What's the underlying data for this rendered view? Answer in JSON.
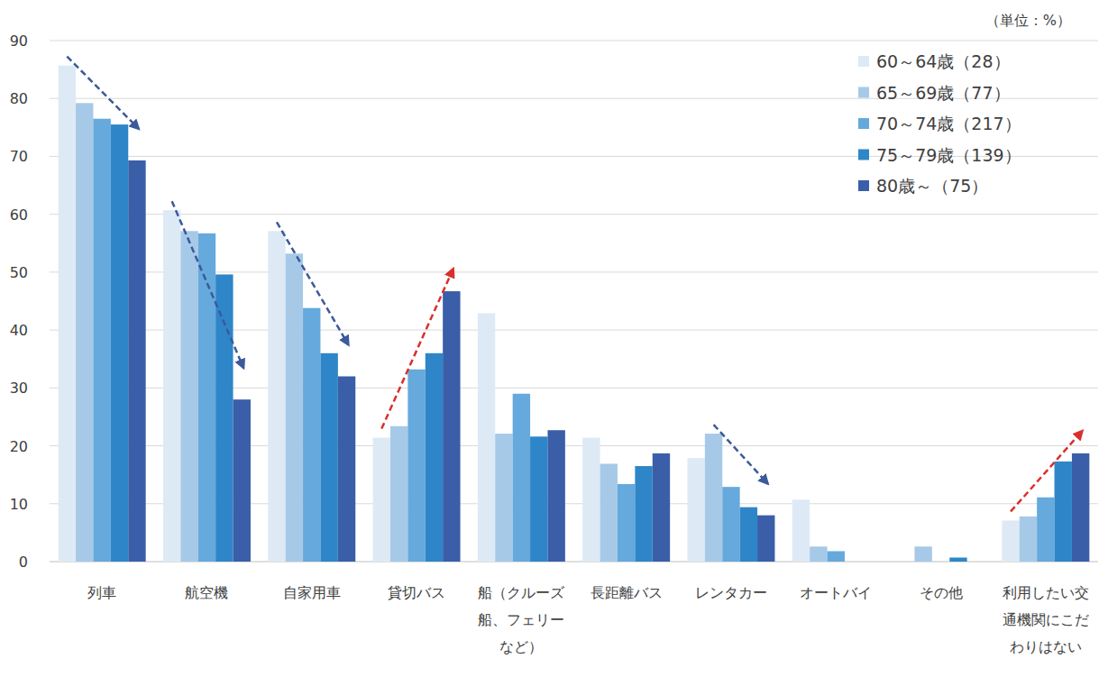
{
  "chart_data": {
    "type": "bar",
    "annotations": [
      "（単位：%）"
    ],
    "categories": [
      "列車",
      "航空機",
      "自家用車",
      "貸切バス",
      "船（クルーズ船、フェリーなど）",
      "長距離バス",
      "レンタカー",
      "オートバイ",
      "その他",
      "利用したい交通機関にこだわりはない"
    ],
    "series": [
      {
        "name": "60～64歳（28）",
        "color": "#ddeaf6",
        "values": [
          85.7,
          60.7,
          57.1,
          21.4,
          42.9,
          21.4,
          17.9,
          10.7,
          0,
          7.1
        ]
      },
      {
        "name": "65～69歳（77）",
        "color": "#a6c9e8",
        "values": [
          79.2,
          57.1,
          53.2,
          23.4,
          22.1,
          16.9,
          22.1,
          2.6,
          2.6,
          7.8
        ]
      },
      {
        "name": "70～74歳（217）",
        "color": "#66a9dc",
        "values": [
          76.5,
          56.7,
          43.8,
          33.2,
          29.0,
          13.4,
          12.9,
          1.8,
          0,
          11.1
        ]
      },
      {
        "name": "75～79歳（139）",
        "color": "#2e86c8",
        "values": [
          75.5,
          49.6,
          36.0,
          36.0,
          21.6,
          16.5,
          9.4,
          0,
          0.7,
          17.3
        ]
      },
      {
        "name": "80歳～（75）",
        "color": "#3a5fa8",
        "values": [
          69.3,
          28.0,
          32.0,
          46.7,
          22.7,
          18.7,
          8.0,
          0,
          0,
          18.7
        ]
      }
    ],
    "ylim": [
      0,
      90
    ],
    "yticks": [
      0,
      10,
      20,
      30,
      40,
      50,
      60,
      70,
      80,
      90
    ],
    "grid": true,
    "legend": "top-right"
  }
}
